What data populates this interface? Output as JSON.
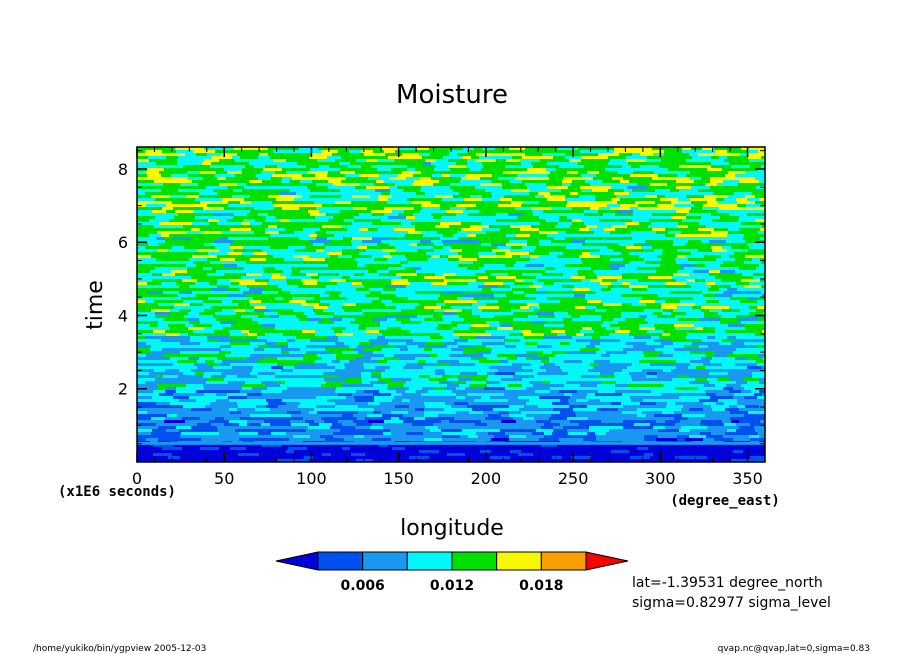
{
  "chart_data": {
    "type": "heatmap",
    "title": "Moisture",
    "xlabel": "longitude",
    "ylabel": "time",
    "x_units": "(degree_east)",
    "y_units": "(x1E6 seconds)",
    "xlim": [
      0,
      360
    ],
    "ylim": [
      0,
      8.6
    ],
    "x_ticks": [
      0,
      50,
      100,
      150,
      200,
      250,
      300,
      350
    ],
    "y_ticks": [
      2,
      4,
      6,
      8
    ],
    "colorbar": {
      "levels": [
        0.003,
        0.006,
        0.009,
        0.012,
        0.015,
        0.018,
        0.021
      ],
      "tick_labels": [
        "0.006",
        "0.012",
        "0.018"
      ],
      "colors": [
        "#0000d8",
        "#0050f0",
        "#1898f0",
        "#00f8f8",
        "#00e000",
        "#f8f800",
        "#f8a000",
        "#f80000"
      ]
    },
    "value_bands": [
      {
        "time_from": 0.0,
        "time_to": 0.55,
        "level": "below 0.003"
      },
      {
        "time_from": 0.55,
        "time_to": 1.7,
        "level": "0.003-0.009"
      },
      {
        "time_from": 1.7,
        "time_to": 3.5,
        "level": "0.006-0.015"
      },
      {
        "time_from": 3.5,
        "time_to": 8.6,
        "level": "0.009-0.018"
      }
    ],
    "annotations": [
      "lat=-1.39531 degree_north",
      "sigma=0.82977 sigma_level"
    ]
  },
  "footer": {
    "left": "/home/yukiko/bin/ygpview  2005-12-03",
    "right": "qvap.nc@qvap,lat=0,sigma=0.83"
  }
}
